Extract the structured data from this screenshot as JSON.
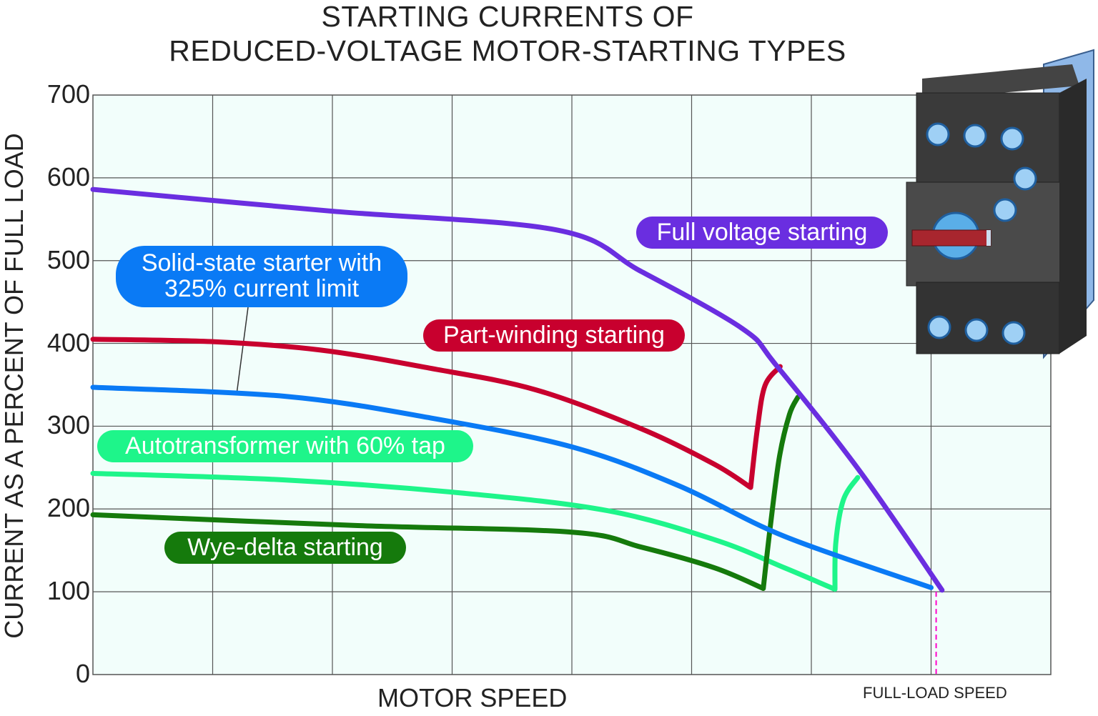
{
  "chart_data": {
    "type": "line",
    "title": "STARTING CURRENTS OF REDUCED-VOLTAGE MOTOR-STARTING TYPES",
    "title_lines": [
      "STARTING CURRENTS OF",
      "REDUCED-VOLTAGE MOTOR-STARTING TYPES"
    ],
    "xlabel": "MOTOR SPEED",
    "ylabel": "CURRENT AS A PERCENT OF FULL LOAD",
    "ylim": [
      0,
      700
    ],
    "yticks": [
      "0",
      "100",
      "200",
      "300",
      "400",
      "500",
      "600",
      "700"
    ],
    "xlim": [
      0,
      113.6
    ],
    "grid": true,
    "annotations": [
      {
        "text": "FULL-LOAD SPEED",
        "x": 100
      }
    ],
    "series": [
      {
        "name": "Full voltage starting",
        "color": "#6a2ee0",
        "x": [
          0,
          28,
          55,
          65,
          77,
          81,
          91,
          100.7
        ],
        "y": [
          586,
          560,
          537,
          487,
          418,
          374,
          245,
          102
        ]
      },
      {
        "name": "Part-winding starting",
        "color": "#c8002e",
        "x": [
          0,
          14.4,
          27,
          40,
          52.5,
          65,
          73.7,
          78,
          78.8,
          79.7,
          81.5
        ],
        "y": [
          405,
          402,
          392,
          370,
          344,
          297,
          254,
          226,
          297,
          349,
          372
        ]
      },
      {
        "name": "Solid-state starter with 325% current limit",
        "color": "#0a7af5",
        "x": [
          0,
          22.9,
          40,
          56.8,
          69.5,
          82,
          99.4
        ],
        "y": [
          347,
          336,
          310,
          275,
          228,
          167,
          105
        ]
      },
      {
        "name": "Autotransformer with 60% tap",
        "color": "#1ef58a",
        "x": [
          0,
          22.9,
          44,
          61,
          73.7,
          82,
          88,
          88.1,
          89,
          90.7
        ],
        "y": [
          243,
          235,
          219,
          198,
          163,
          129,
          103,
          159,
          211,
          238
        ]
      },
      {
        "name": "Wye-delta starting",
        "color": "#157a0c",
        "x": [
          0,
          31.4,
          56.8,
          65,
          73.7,
          79.5,
          80.3,
          81.4,
          82.6,
          83.6
        ],
        "y": [
          193,
          180,
          172,
          154,
          129,
          104,
          176,
          262,
          314,
          335
        ]
      }
    ],
    "labels": {
      "full": "Full voltage starting",
      "solid1": "Solid-state starter with",
      "solid2": "325% current limit",
      "part": "Part-winding starting",
      "auto": "Autotransformer with 60% tap",
      "wye": "Wye-delta starting"
    }
  }
}
